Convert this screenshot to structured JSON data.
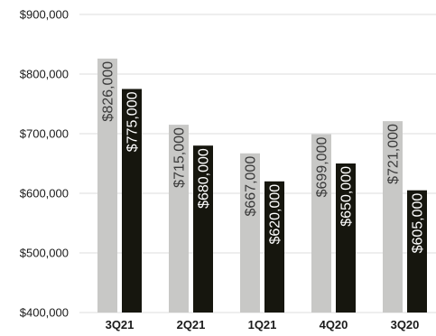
{
  "chart_data": {
    "type": "bar",
    "categories": [
      "3Q21",
      "2Q21",
      "1Q21",
      "4Q20",
      "3Q20"
    ],
    "series": [
      {
        "values": [
          826000,
          715000,
          667000,
          699000,
          721000
        ],
        "color": "#c8c8c6",
        "label_color": "#3a3a3a"
      },
      {
        "values": [
          775000,
          680000,
          620000,
          650000,
          605000
        ],
        "color": "#16160e",
        "label_color": "#ffffff"
      }
    ],
    "data_labels": [
      [
        "$826,000",
        "$715,000",
        "$667,000",
        "$699,000",
        "$721,000"
      ],
      [
        "$775,000",
        "$680,000",
        "$620,000",
        "$650,000",
        "$605,000"
      ]
    ],
    "y_ticks": [
      400000,
      500000,
      600000,
      700000,
      800000,
      900000
    ],
    "y_tick_labels": [
      "$400,000",
      "$500,000",
      "$600,000",
      "$700,000",
      "$800,000",
      "$900,000"
    ],
    "ylim": [
      400000,
      900000
    ],
    "grid": true,
    "legend": "none",
    "title": "",
    "xlabel": "",
    "ylabel": ""
  }
}
